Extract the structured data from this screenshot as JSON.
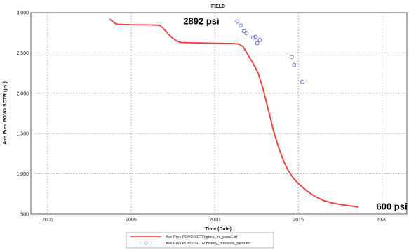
{
  "chart_data": {
    "type": "line",
    "title": "FIELD",
    "xlabel": "Time (Date)",
    "ylabel": "Ave Pres POVO SCTR (psi)",
    "xlim": [
      1999,
      2021.5
    ],
    "ylim": [
      500,
      3000
    ],
    "xticks": [
      2000,
      2005,
      2010,
      2015,
      2020
    ],
    "xtick_labels": [
      "2000",
      "2005",
      "2010",
      "2015",
      "2020"
    ],
    "yticks": [
      500,
      1000,
      1500,
      2000,
      2500,
      3000
    ],
    "ytick_labels": [
      "500",
      "1.000",
      "1.500",
      "2.000",
      "2.500",
      "3.000"
    ],
    "grid": true,
    "legend": "bottom-center",
    "annotations": [
      {
        "text": "2892 psi",
        "x": 2009.2,
        "y": 2892
      },
      {
        "text": "600 psi",
        "x": 2020.6,
        "y": 590
      }
    ],
    "series": [
      {
        "name": "Ave Pres POVO SCTR:pkna_ini_poes1.irf",
        "kind": "line",
        "color": "#ff3333",
        "x": [
          2003.7,
          2003.85,
          2004.0,
          2004.2,
          2005.0,
          2006.0,
          2006.7,
          2006.95,
          2007.2,
          2007.5,
          2007.8,
          2008.0,
          2009.0,
          2010.0,
          2011.0,
          2011.4,
          2011.7,
          2012.0,
          2012.3,
          2012.6,
          2012.9,
          2013.2,
          2013.5,
          2013.8,
          2014.1,
          2014.4,
          2014.7,
          2015.0,
          2015.5,
          2016.0,
          2016.5,
          2017.0,
          2017.5,
          2018.0,
          2018.6
        ],
        "y": [
          2920,
          2900,
          2870,
          2855,
          2850,
          2848,
          2845,
          2800,
          2740,
          2680,
          2640,
          2630,
          2625,
          2620,
          2618,
          2612,
          2580,
          2470,
          2370,
          2250,
          2050,
          1800,
          1550,
          1340,
          1170,
          1040,
          950,
          880,
          790,
          720,
          670,
          640,
          620,
          605,
          590
        ]
      },
      {
        "name": "Ave Pres POVO SCTR:history_pressure_pkna.fhf",
        "kind": "scatter",
        "color": "#5555cc",
        "x": [
          2011.35,
          2011.55,
          2011.75,
          2011.9,
          2012.3,
          2012.45,
          2012.55,
          2012.7,
          2014.6,
          2014.75,
          2015.25
        ],
        "y": [
          2890,
          2840,
          2770,
          2745,
          2690,
          2700,
          2620,
          2660,
          2450,
          2350,
          2140
        ]
      }
    ]
  }
}
